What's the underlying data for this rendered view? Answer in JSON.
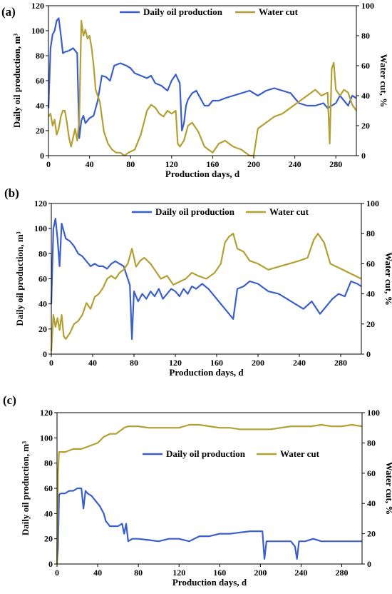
{
  "chart_data": [
    {
      "type": "line",
      "panel_label": "(a)",
      "xlabel": "Production  days, d",
      "ylabel_left": "Daily oil production, m³",
      "ylabel_right": "Water cut, %",
      "xlim": [
        0,
        300
      ],
      "ylim_left": [
        0,
        120
      ],
      "ylim_right": [
        0,
        100
      ],
      "xticks": [
        0,
        40,
        80,
        120,
        160,
        200,
        240,
        280
      ],
      "yticks_left": [
        0,
        20,
        40,
        60,
        80,
        100,
        120
      ],
      "yticks_right": [
        0,
        20,
        40,
        60,
        80,
        100
      ],
      "legend_position": "top-right",
      "grid": false,
      "series": [
        {
          "name": "Daily oil  production",
          "axis": "left",
          "color": "#3a5fcd",
          "x": [
            0,
            2,
            4,
            6,
            8,
            10,
            12,
            14,
            16,
            20,
            24,
            28,
            30,
            32,
            34,
            36,
            40,
            44,
            48,
            52,
            56,
            60,
            64,
            70,
            76,
            80,
            84,
            90,
            96,
            100,
            104,
            110,
            116,
            120,
            124,
            128,
            130,
            132,
            134,
            136,
            140,
            144,
            148,
            152,
            156,
            160,
            166,
            172,
            180,
            188,
            196,
            204,
            212,
            220,
            228,
            236,
            244,
            252,
            260,
            268,
            272,
            276,
            280,
            284,
            288,
            292,
            296,
            300
          ],
          "y": [
            38,
            86,
            97,
            100,
            108,
            110,
            97,
            82,
            83,
            84,
            86,
            82,
            14,
            28,
            32,
            26,
            30,
            32,
            44,
            64,
            63,
            60,
            72,
            74,
            72,
            70,
            66,
            64,
            62,
            64,
            58,
            56,
            52,
            60,
            65,
            58,
            20,
            26,
            40,
            45,
            50,
            52,
            46,
            40,
            40,
            44,
            44,
            46,
            48,
            50,
            52,
            48,
            52,
            54,
            52,
            50,
            42,
            40,
            40,
            42,
            38,
            40,
            42,
            48,
            44,
            40,
            48,
            46
          ]
        },
        {
          "name": "Water cut",
          "axis": "right",
          "color": "#b4a032",
          "x": [
            0,
            2,
            4,
            6,
            8,
            10,
            12,
            14,
            16,
            18,
            20,
            22,
            24,
            26,
            28,
            30,
            32,
            34,
            36,
            38,
            40,
            42,
            44,
            46,
            50,
            54,
            58,
            62,
            66,
            70,
            74,
            78,
            84,
            90,
            96,
            100,
            104,
            108,
            112,
            116,
            120,
            124,
            126,
            128,
            132,
            136,
            140,
            146,
            152,
            160,
            166,
            172,
            180,
            188,
            196,
            200,
            204,
            212,
            220,
            228,
            236,
            244,
            252,
            260,
            266,
            272,
            274,
            276,
            278,
            280,
            284,
            288,
            292,
            296,
            300
          ],
          "y": [
            26,
            28,
            20,
            24,
            14,
            18,
            26,
            30,
            30,
            22,
            12,
            6,
            12,
            18,
            10,
            24,
            90,
            80,
            84,
            78,
            80,
            72,
            60,
            44,
            36,
            16,
            8,
            4,
            2,
            2,
            0,
            2,
            4,
            14,
            30,
            34,
            32,
            28,
            26,
            30,
            28,
            30,
            8,
            6,
            10,
            20,
            22,
            16,
            6,
            2,
            8,
            10,
            6,
            4,
            0,
            0,
            18,
            22,
            26,
            28,
            32,
            36,
            40,
            44,
            40,
            42,
            8,
            58,
            62,
            44,
            40,
            44,
            42,
            34,
            30
          ]
        }
      ]
    },
    {
      "type": "line",
      "panel_label": "(b)",
      "xlabel": "Production  days, d",
      "ylabel_left": "Daily oil  production, m³",
      "ylabel_right": "Water cut, %",
      "xlim": [
        0,
        300
      ],
      "ylim_left": [
        0,
        120
      ],
      "ylim_right": [
        0,
        100
      ],
      "xticks": [
        0,
        40,
        80,
        120,
        160,
        200,
        240,
        280
      ],
      "yticks_left": [
        0,
        20,
        40,
        60,
        80,
        100,
        120
      ],
      "yticks_right": [
        0,
        20,
        40,
        60,
        80,
        100
      ],
      "legend_position": "top-right",
      "grid": false,
      "series": [
        {
          "name": "Daily oil  production",
          "axis": "left",
          "color": "#3a5fcd",
          "x": [
            0,
            2,
            4,
            6,
            8,
            10,
            12,
            14,
            18,
            22,
            26,
            30,
            34,
            38,
            42,
            46,
            50,
            54,
            58,
            62,
            66,
            70,
            74,
            76,
            78,
            80,
            84,
            88,
            92,
            96,
            100,
            104,
            108,
            112,
            116,
            120,
            124,
            128,
            132,
            136,
            140,
            146,
            152,
            158,
            164,
            170,
            176,
            180,
            186,
            192,
            200,
            210,
            220,
            228,
            236,
            244,
            252,
            260,
            266,
            272,
            278,
            284,
            290,
            296,
            300
          ],
          "y": [
            40,
            100,
            108,
            92,
            70,
            104,
            98,
            92,
            90,
            86,
            80,
            78,
            74,
            70,
            72,
            70,
            70,
            68,
            72,
            74,
            72,
            70,
            60,
            55,
            12,
            50,
            42,
            48,
            44,
            50,
            46,
            52,
            44,
            48,
            52,
            50,
            46,
            52,
            48,
            54,
            52,
            56,
            52,
            46,
            40,
            34,
            28,
            52,
            54,
            58,
            56,
            50,
            48,
            44,
            40,
            36,
            42,
            32,
            38,
            44,
            48,
            46,
            58,
            56,
            54
          ]
        },
        {
          "name": "Water cut",
          "axis": "right",
          "color": "#b4a032",
          "x": [
            0,
            2,
            4,
            6,
            8,
            10,
            12,
            14,
            18,
            22,
            26,
            30,
            34,
            38,
            42,
            46,
            50,
            54,
            58,
            62,
            66,
            70,
            74,
            78,
            82,
            86,
            90,
            96,
            100,
            106,
            112,
            118,
            124,
            130,
            136,
            142,
            150,
            158,
            164,
            168,
            172,
            176,
            180,
            186,
            192,
            200,
            210,
            220,
            230,
            240,
            248,
            254,
            258,
            264,
            270,
            276,
            282,
            288,
            294,
            300
          ],
          "y": [
            2,
            26,
            18,
            24,
            16,
            26,
            12,
            10,
            14,
            20,
            22,
            26,
            34,
            30,
            38,
            40,
            44,
            50,
            52,
            50,
            54,
            56,
            60,
            70,
            58,
            62,
            64,
            60,
            56,
            50,
            52,
            46,
            48,
            50,
            54,
            52,
            50,
            54,
            60,
            74,
            78,
            80,
            70,
            68,
            62,
            60,
            56,
            58,
            60,
            62,
            64,
            76,
            80,
            74,
            60,
            58,
            56,
            54,
            52,
            50
          ]
        }
      ]
    },
    {
      "type": "line",
      "panel_label": "(c)",
      "xlabel": "Production  days, d",
      "ylabel_left": "Daily oil  production, m³",
      "ylabel_right": "Water cut, %",
      "xlim": [
        0,
        300
      ],
      "ylim_left": [
        0,
        120
      ],
      "ylim_right": [
        0,
        100
      ],
      "xticks": [
        0,
        40,
        80,
        120,
        160,
        200,
        240,
        280
      ],
      "yticks_left": [
        0,
        20,
        40,
        60,
        80,
        100,
        120
      ],
      "yticks_right": [
        0,
        20,
        40,
        60,
        80,
        100
      ],
      "legend_position": "center-right",
      "grid": false,
      "series": [
        {
          "name": "Daily oil  production",
          "axis": "left",
          "color": "#3a5fcd",
          "x": [
            0,
            1,
            2,
            4,
            8,
            12,
            16,
            20,
            24,
            26,
            28,
            30,
            34,
            38,
            42,
            46,
            48,
            52,
            56,
            60,
            64,
            66,
            68,
            70,
            74,
            80,
            90,
            100,
            110,
            120,
            130,
            140,
            150,
            160,
            170,
            180,
            190,
            198,
            202,
            204,
            206,
            210,
            220,
            230,
            234,
            236,
            238,
            244,
            252,
            260,
            270,
            280,
            290,
            300
          ],
          "y": [
            2,
            12,
            55,
            56,
            56,
            58,
            58,
            60,
            60,
            44,
            58,
            56,
            54,
            50,
            46,
            40,
            34,
            30,
            30,
            30,
            32,
            24,
            32,
            18,
            20,
            20,
            19,
            18,
            20,
            20,
            18,
            22,
            22,
            24,
            24,
            25,
            26,
            26,
            26,
            4,
            18,
            18,
            18,
            18,
            14,
            4,
            18,
            18,
            20,
            18,
            18,
            18,
            18,
            18
          ]
        },
        {
          "name": "Water cut",
          "axis": "right",
          "color": "#b4a032",
          "x": [
            0,
            1,
            2,
            4,
            8,
            16,
            24,
            32,
            40,
            46,
            52,
            58,
            62,
            66,
            70,
            80,
            90,
            100,
            110,
            120,
            130,
            140,
            150,
            160,
            170,
            180,
            190,
            200,
            210,
            220,
            230,
            240,
            250,
            260,
            270,
            280,
            290,
            300
          ],
          "y": [
            0,
            60,
            74,
            74,
            74,
            76,
            76,
            78,
            80,
            84,
            86,
            86,
            88,
            90,
            91,
            91,
            90,
            90,
            90,
            90,
            92,
            92,
            91,
            90,
            90,
            89,
            89,
            89,
            89,
            90,
            91,
            91,
            91,
            92,
            91,
            91,
            92,
            91
          ]
        }
      ]
    }
  ]
}
